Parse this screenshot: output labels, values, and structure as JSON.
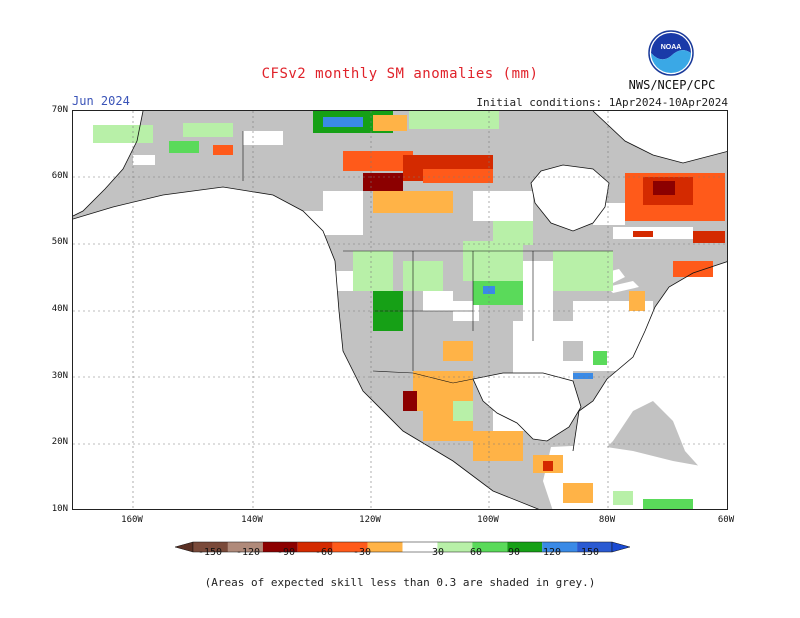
{
  "title": "CFSv2 monthly SM anomalies (mm)",
  "forecast_month": "Jun 2024",
  "initial_conditions": "Initial conditions: 1Apr2024-10Apr2024",
  "agency": "NWS/NCEP/CPC",
  "logo_text": "NOAA",
  "note": "(Areas of expected skill less than 0.3 are shaded in grey.)",
  "colors": {
    "land_grey": "#c2c2c2",
    "ocean": "#ffffff",
    "title": "#e0222a",
    "month": "#3b54b8"
  },
  "lat_labels": [
    "70N",
    "60N",
    "50N",
    "40N",
    "30N",
    "20N",
    "10N"
  ],
  "lon_labels": [
    "160W",
    "140W",
    "120W",
    "100W",
    "80W",
    "60W"
  ],
  "colorbar": {
    "tick_labels": [
      "-150",
      "-120",
      "-90",
      "-60",
      "-30",
      "30",
      "60",
      "90",
      "120",
      "150"
    ],
    "colors": [
      "#7a4a3a",
      "#b08a7a",
      "#8c0000",
      "#d42a00",
      "#ff5a1a",
      "#ffb347",
      "#ffffff",
      "#b8f0a8",
      "#5ada5a",
      "#16a016",
      "#3a8ae6",
      "#2a5ad2"
    ]
  }
}
